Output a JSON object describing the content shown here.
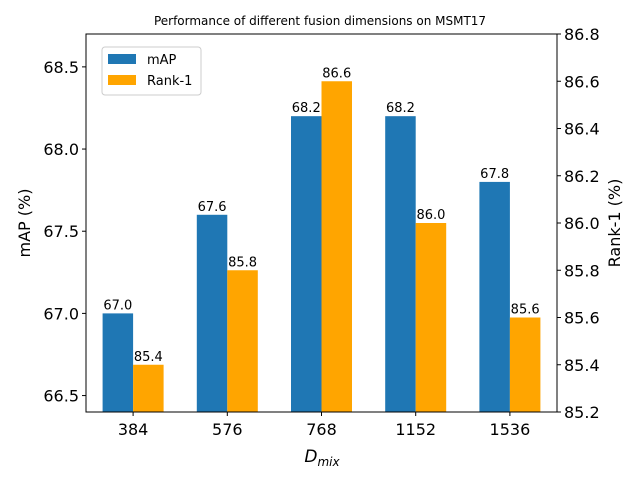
{
  "chart_data": {
    "type": "bar",
    "title": "Performance of different fusion dimensions on MSMT17",
    "xlabel_main": "D",
    "xlabel_sub": "mix",
    "ylabel_left": "mAP (%)",
    "ylabel_right": "Rank-1 (%)",
    "categories": [
      "384",
      "576",
      "768",
      "1152",
      "1536"
    ],
    "series": [
      {
        "name": "mAP",
        "axis": "left",
        "color": "#1f77b4",
        "values": [
          67.0,
          67.6,
          68.2,
          68.2,
          67.8
        ],
        "value_labels": [
          "67.0",
          "67.6",
          "68.2",
          "68.2",
          "67.8"
        ]
      },
      {
        "name": "Rank-1",
        "axis": "right",
        "color": "#ffa500",
        "values": [
          85.4,
          85.8,
          86.6,
          86.0,
          85.6
        ],
        "value_labels": [
          "85.4",
          "85.8",
          "86.6",
          "86.0",
          "85.6"
        ]
      }
    ],
    "ylim_left": [
      66.4,
      68.7
    ],
    "yticks_left": [
      "66.5",
      "67.0",
      "67.5",
      "68.0",
      "68.5"
    ],
    "ylim_right": [
      85.2,
      86.8
    ],
    "yticks_right": [
      "85.2",
      "85.4",
      "85.6",
      "85.8",
      "86.0",
      "86.2",
      "86.4",
      "86.6",
      "86.8"
    ],
    "legend": "top-left",
    "grid": false
  }
}
